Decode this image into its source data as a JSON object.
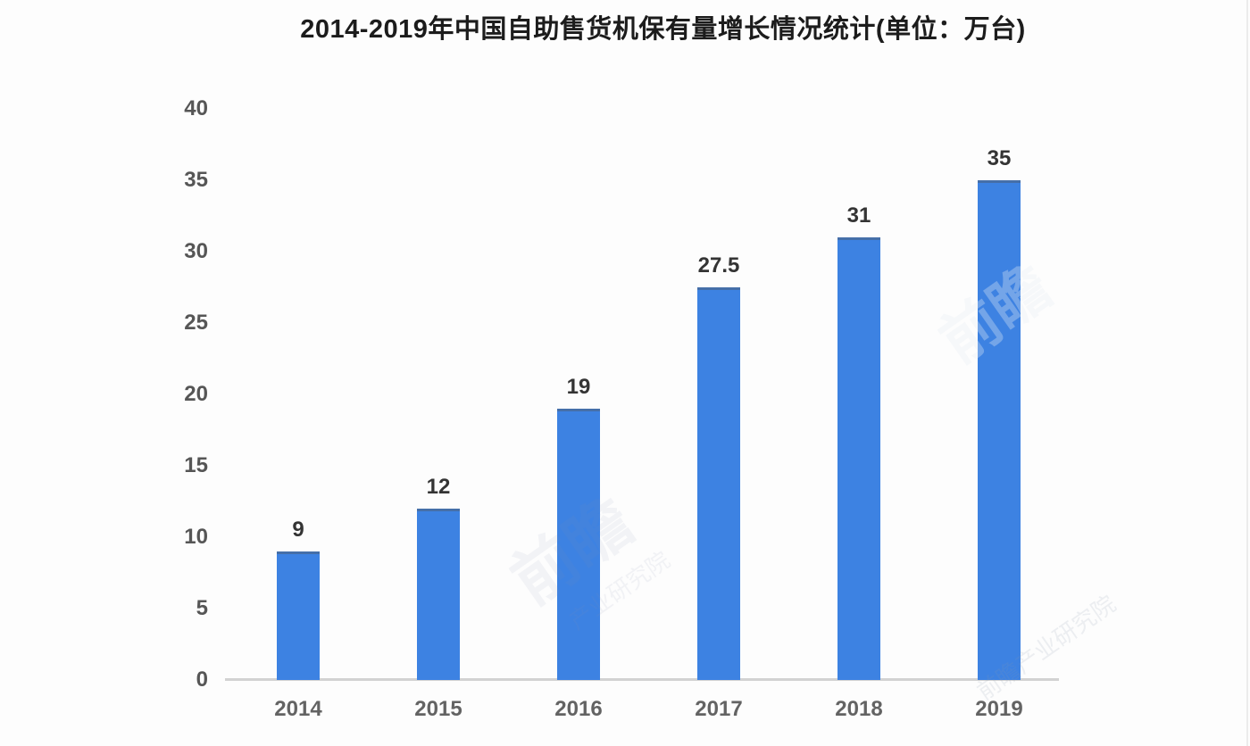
{
  "chart_data": {
    "type": "bar",
    "title": "2014-2019年中国自助售货机保有量增长情况统计(单位：万台)",
    "unit": "万台",
    "categories": [
      "2014",
      "2015",
      "2016",
      "2017",
      "2018",
      "2019"
    ],
    "values": [
      9,
      12,
      19,
      27.5,
      31,
      35
    ],
    "value_labels": [
      "9",
      "12",
      "19",
      "27.5",
      "31",
      "35"
    ],
    "y_ticks": [
      0,
      5,
      10,
      15,
      20,
      25,
      30,
      35,
      40
    ],
    "ylim": [
      0,
      40
    ],
    "xlabel": "",
    "ylabel": "",
    "grid": false,
    "legend": "none",
    "bar_color": "#3d82e2"
  },
  "watermarks": [
    {
      "text": "前瞻"
    },
    {
      "text": "前瞻"
    },
    {
      "text": "前瞻产业研究院"
    },
    {
      "text": "产业研究院"
    }
  ]
}
